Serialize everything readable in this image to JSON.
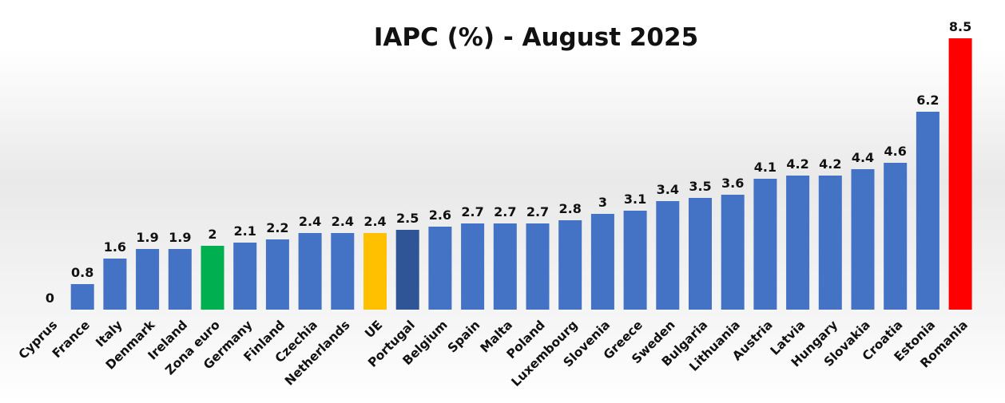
{
  "colors": {
    "default": "#4472C4",
    "highlight_green": "#00B050",
    "highlight_yellow": "#FFC000",
    "highlight_darkblue": "#2F5597",
    "highlight_red": "#FF0000"
  },
  "chart_data": {
    "type": "bar",
    "title": "IAPC (%) - August 2025",
    "xlabel": "",
    "ylabel": "",
    "ylim": [
      0,
      8.5
    ],
    "grid": false,
    "legend": "none",
    "categories": [
      "Cyprus",
      "France",
      "Italy",
      "Denmark",
      "Ireland",
      "Zona euro",
      "Germany",
      "Finland",
      "Czechia",
      "Netherlands",
      "UE",
      "Portugal",
      "Belgium",
      "Spain",
      "Malta",
      "Poland",
      "Luxembourg",
      "Slovenia",
      "Greece",
      "Sweden",
      "Bulgaria",
      "Lithuania",
      "Austria",
      "Latvia",
      "Hungary",
      "Slovakia",
      "Croatia",
      "Estonia",
      "Romania"
    ],
    "values": [
      0,
      0.8,
      1.6,
      1.9,
      1.9,
      2,
      2.1,
      2.2,
      2.4,
      2.4,
      2.4,
      2.5,
      2.6,
      2.7,
      2.7,
      2.7,
      2.8,
      3,
      3.1,
      3.4,
      3.5,
      3.6,
      4.1,
      4.2,
      4.2,
      4.4,
      4.6,
      6.2,
      8.5
    ],
    "value_labels": [
      "0",
      "0.8",
      "1.6",
      "1.9",
      "1.9",
      "2",
      "2.1",
      "2.2",
      "2.4",
      "2.4",
      "2.4",
      "2.5",
      "2.6",
      "2.7",
      "2.7",
      "2.7",
      "2.8",
      "3",
      "3.1",
      "3.4",
      "3.5",
      "3.6",
      "4.1",
      "4.2",
      "4.2",
      "4.4",
      "4.6",
      "6.2",
      "8.5"
    ],
    "highlights": {
      "Zona euro": "highlight_green",
      "UE": "highlight_yellow",
      "Portugal": "highlight_darkblue",
      "Romania": "highlight_red"
    }
  }
}
